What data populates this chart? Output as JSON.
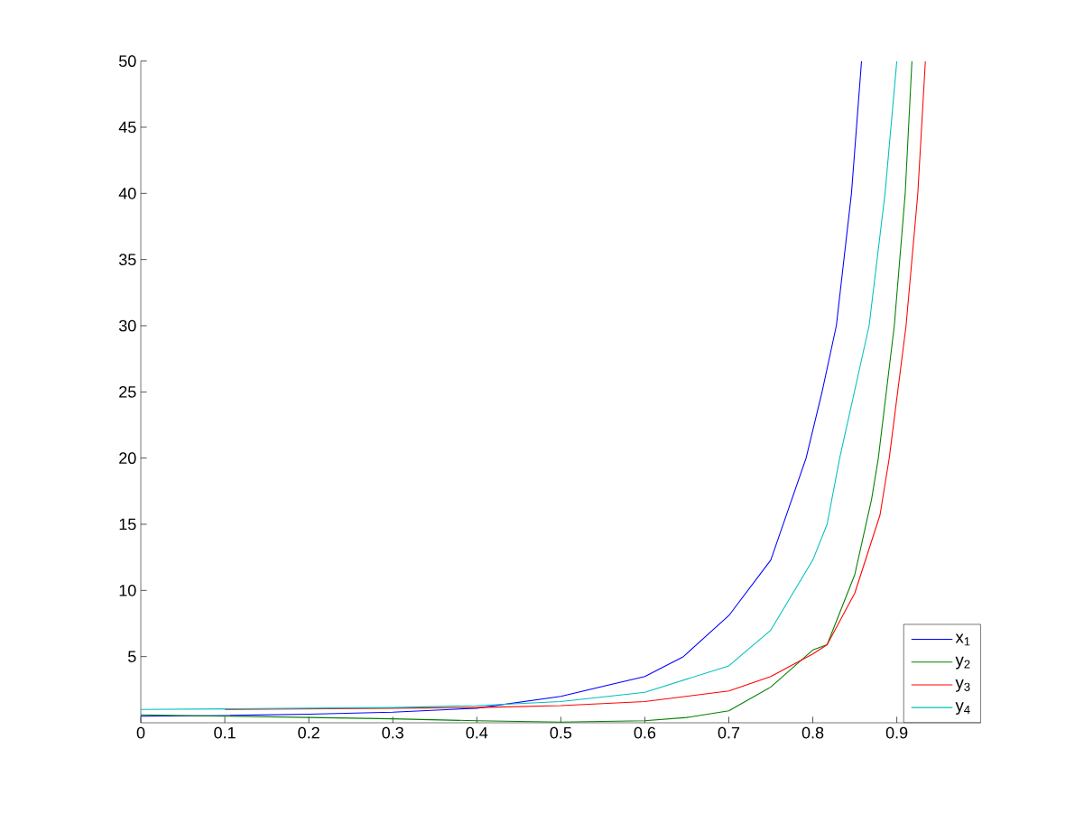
{
  "chart_data": {
    "type": "line",
    "xlim": [
      0,
      1
    ],
    "ylim": [
      0,
      50
    ],
    "xticks": [
      0,
      0.1,
      0.2,
      0.3,
      0.4,
      0.5,
      0.6,
      0.7,
      0.8,
      0.9
    ],
    "yticks": [
      5,
      10,
      15,
      20,
      25,
      30,
      35,
      40,
      45,
      50
    ],
    "legend": "bottom right",
    "grid": false,
    "marker": "none",
    "line_style": "solid",
    "series": [
      {
        "name": "x$_{1}$",
        "color": "#0000ff",
        "x": [
          0,
          0.1,
          0.2,
          0.3,
          0.4,
          0.5,
          0.6,
          0.646,
          0.7,
          0.75,
          0.792,
          0.811,
          0.828,
          0.846,
          0.858
        ],
        "values": [
          0.5,
          0.55,
          0.65,
          0.8,
          1.1,
          2.0,
          3.5,
          5,
          8.1,
          12.3,
          20,
          25,
          30,
          40,
          50
        ]
      },
      {
        "name": "y$_{2}$",
        "color": "#008000",
        "x": [
          0,
          0.1,
          0.2,
          0.3,
          0.4,
          0.5,
          0.6,
          0.65,
          0.7,
          0.75,
          0.8,
          0.817,
          0.85,
          0.87,
          0.878,
          0.897,
          0.91,
          0.918
        ],
        "values": [
          0.6,
          0.5,
          0.4,
          0.3,
          0.15,
          0.05,
          0.15,
          0.4,
          0.9,
          2.7,
          5.5,
          5.9,
          11.2,
          16.9,
          20,
          30,
          40,
          50
        ]
      },
      {
        "name": "y$_{3}$",
        "color": "#ff0000",
        "x": [
          0.1,
          0.2,
          0.3,
          0.4,
          0.5,
          0.6,
          0.7,
          0.75,
          0.8,
          0.817,
          0.85,
          0.88,
          0.891,
          0.911,
          0.925,
          0.934
        ],
        "values": [
          1.0,
          1.05,
          1.1,
          1.15,
          1.3,
          1.6,
          2.4,
          3.5,
          5.2,
          5.9,
          9.8,
          15.7,
          20,
          30,
          40,
          50
        ]
      },
      {
        "name": "y$_{4}$",
        "color": "#00bfbf",
        "x": [
          0,
          0.1,
          0.2,
          0.3,
          0.4,
          0.5,
          0.6,
          0.7,
          0.75,
          0.8,
          0.817,
          0.832,
          0.867,
          0.886,
          0.9
        ],
        "values": [
          1.0,
          1.05,
          1.1,
          1.15,
          1.3,
          1.6,
          2.3,
          4.3,
          7.0,
          12.3,
          15,
          20,
          30,
          40,
          50
        ]
      }
    ]
  }
}
